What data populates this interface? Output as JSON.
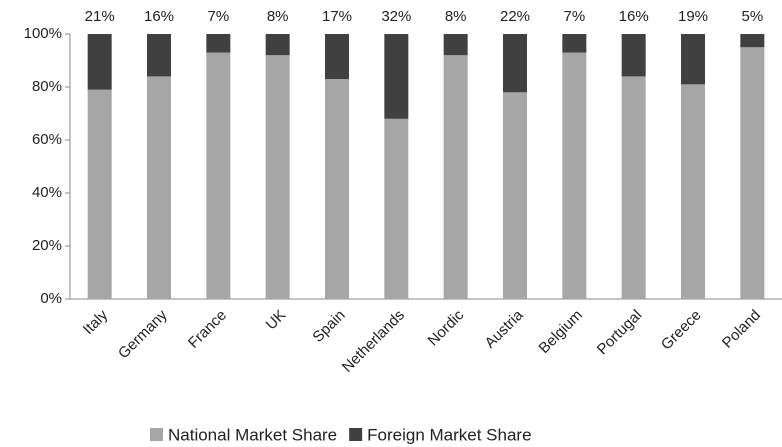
{
  "chart_data": {
    "type": "stacked_bar",
    "categories": [
      "Italy",
      "Germany",
      "France",
      "UK",
      "Spain",
      "Netherlands",
      "Nordic",
      "Austria",
      "Belgium",
      "Portugal",
      "Greece",
      "Poland"
    ],
    "series": [
      {
        "name": "National Market Share",
        "color": "#a6a6a6",
        "values": [
          79,
          84,
          93,
          92,
          83,
          68,
          92,
          78,
          93,
          84,
          81,
          95
        ]
      },
      {
        "name": "Foreign Market Share",
        "color": "#404040",
        "values": [
          21,
          16,
          7,
          8,
          17,
          32,
          8,
          22,
          7,
          16,
          19,
          5
        ],
        "value_labels": [
          "21%",
          "16%",
          "7%",
          "8%",
          "17%",
          "32%",
          "8%",
          "22%",
          "7%",
          "16%",
          "19%",
          "5%"
        ]
      }
    ],
    "ylim": [
      0,
      100
    ],
    "yticks": [
      {
        "value": 0,
        "label": "0%"
      },
      {
        "value": 20,
        "label": "20%"
      },
      {
        "value": 40,
        "label": "40%"
      },
      {
        "value": 60,
        "label": "60%"
      },
      {
        "value": 80,
        "label": "80%"
      },
      {
        "value": 100,
        "label": "100%"
      }
    ],
    "legend": "bottom"
  }
}
